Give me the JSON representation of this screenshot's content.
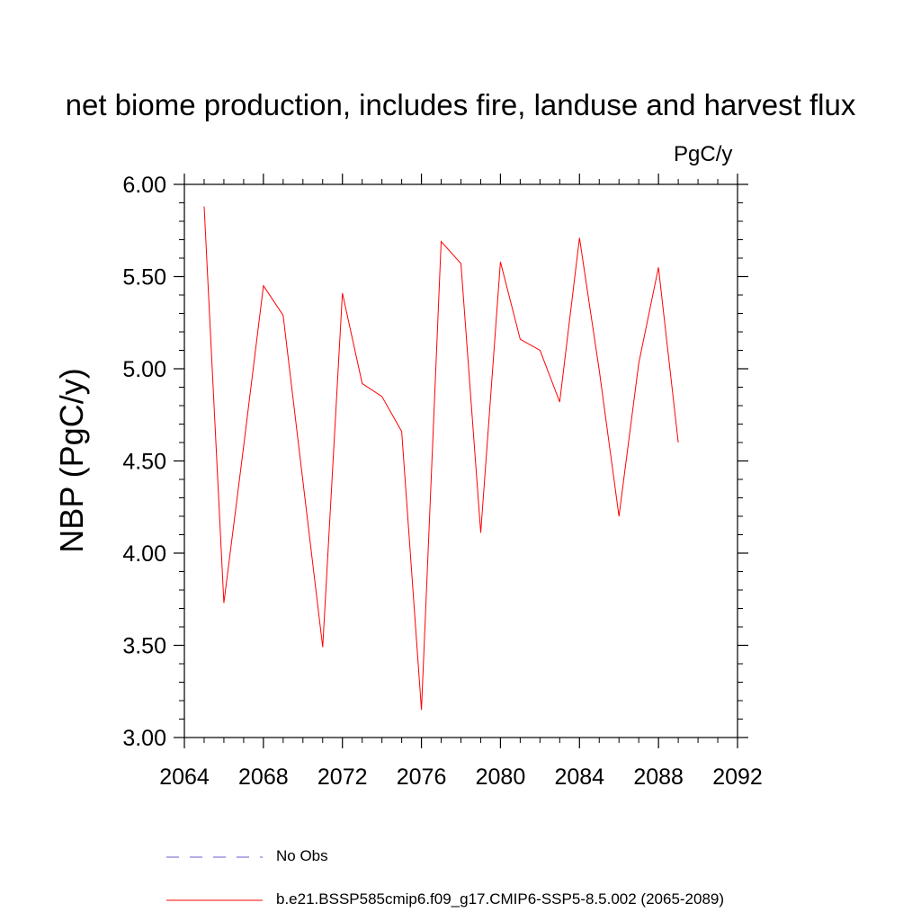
{
  "chart_data": {
    "type": "line",
    "title": "net biome production, includes fire, landuse and harvest flux",
    "units_label": "PgC/y",
    "ylabel": "NBP  (PgC/y)",
    "xlabel": "",
    "xlim": [
      2064,
      2092
    ],
    "ylim": [
      3.0,
      6.0
    ],
    "x_ticks": [
      2064,
      2068,
      2072,
      2076,
      2080,
      2084,
      2088,
      2092
    ],
    "x_tick_labels": [
      "2064",
      "2068",
      "2072",
      "2076",
      "2080",
      "2084",
      "2088",
      "2092"
    ],
    "y_ticks": [
      3.0,
      3.5,
      4.0,
      4.5,
      5.0,
      5.5,
      6.0
    ],
    "y_tick_labels": [
      "3.00",
      "3.50",
      "4.00",
      "4.50",
      "5.00",
      "5.50",
      "6.00"
    ],
    "grid": false,
    "legend_position": "bottom",
    "series": [
      {
        "name": "b.e21.BSSP585cmip6.f09_g17.CMIP6-SSP5-8.5.002 (2065-2089)",
        "color": "#ff0000",
        "style": "solid",
        "x": [
          2065,
          2066,
          2067,
          2068,
          2069,
          2070,
          2071,
          2072,
          2073,
          2074,
          2075,
          2076,
          2077,
          2078,
          2079,
          2080,
          2081,
          2082,
          2083,
          2084,
          2085,
          2086,
          2087,
          2088,
          2089
        ],
        "y": [
          5.88,
          3.73,
          4.58,
          5.45,
          5.29,
          4.39,
          3.49,
          5.41,
          4.92,
          4.85,
          4.66,
          3.15,
          5.69,
          5.57,
          4.11,
          5.58,
          5.16,
          5.1,
          4.82,
          5.71,
          4.99,
          4.2,
          5.03,
          5.55,
          4.6
        ]
      },
      {
        "name": "No Obs",
        "color": "#6a5acd",
        "style": "dashed",
        "x": [],
        "y": []
      }
    ]
  }
}
